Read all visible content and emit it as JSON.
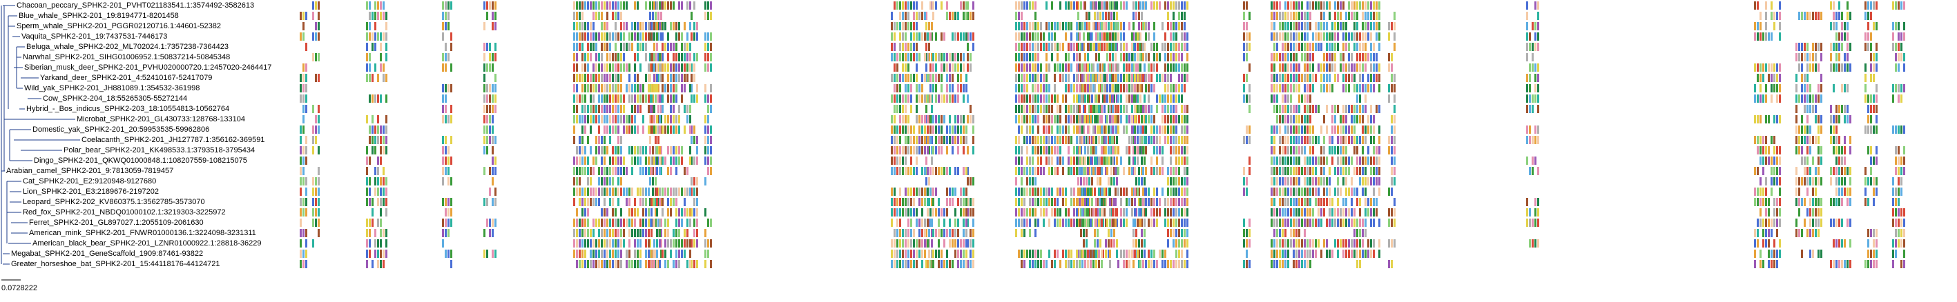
{
  "tree": {
    "leaves": [
      "Chacoan_peccary_SPHK2-201_PVHT021183541.1:3574492-3582613",
      "Blue_whale_SPHK2-201_19:8194771-8201458",
      "Sperm_whale_SPHK2-201_PGGR02120716.1:44601-52382",
      "Vaquita_SPHK2-201_19:7437531-7446173",
      "Beluga_whale_SPHK2-202_ML702024.1:7357238-7364423",
      "Narwhal_SPHK2-201_SIHG01006952.1:50837214-50845348",
      "Siberian_musk_deer_SPHK2-201_PVHU020000720.1:2457020-2464417",
      "Yarkand_deer_SPHK2-201_4:52410167-52417079",
      "Wild_yak_SPHK2-201_JH881089.1:354532-361998",
      "Cow_SPHK2-204_18:55265305-55272144",
      "Hybrid_-_Bos_indicus_SPHK2-203_18:10554813-10562764",
      "Microbat_SPHK2-201_GL430733:128768-133104",
      "Domestic_yak_SPHK2-201_20:59953535-59962806",
      "Coelacanth_SPHK2-201_JH127787.1:356162-369591",
      "Polar_bear_SPHK2-201_KK498533.1:3793518-3795434",
      "Dingo_SPHK2-201_QKWQ01000848.1:108207559-108215075",
      "Arabian_camel_SPHK2-201_9:7813059-7819457",
      "Cat_SPHK2-201_E2:9120948-9127680",
      "Lion_SPHK2-201_E3:2189676-2197202",
      "Leopard_SPHK2-202_KV860375.1:3562785-3573070",
      "Red_fox_SPHK2-201_NBDQ01000102.1:3219303-3225972",
      "Ferret_SPHK2-201_GL897027.1:2055109-2061630",
      "American_mink_SPHK2-201_FNWR01000136.1:3224098-3231311",
      "American_black_bear_SPHK2-201_LZNR01000922.1:28818-36229",
      "Megabat_SPHK2-201_GeneScaffold_1909:87461-93822",
      "Greater_horseshoe_bat_SPHK2-201_15:44118176-44124721"
    ]
  },
  "scale_bar": {
    "label": "0.0728222"
  }
}
